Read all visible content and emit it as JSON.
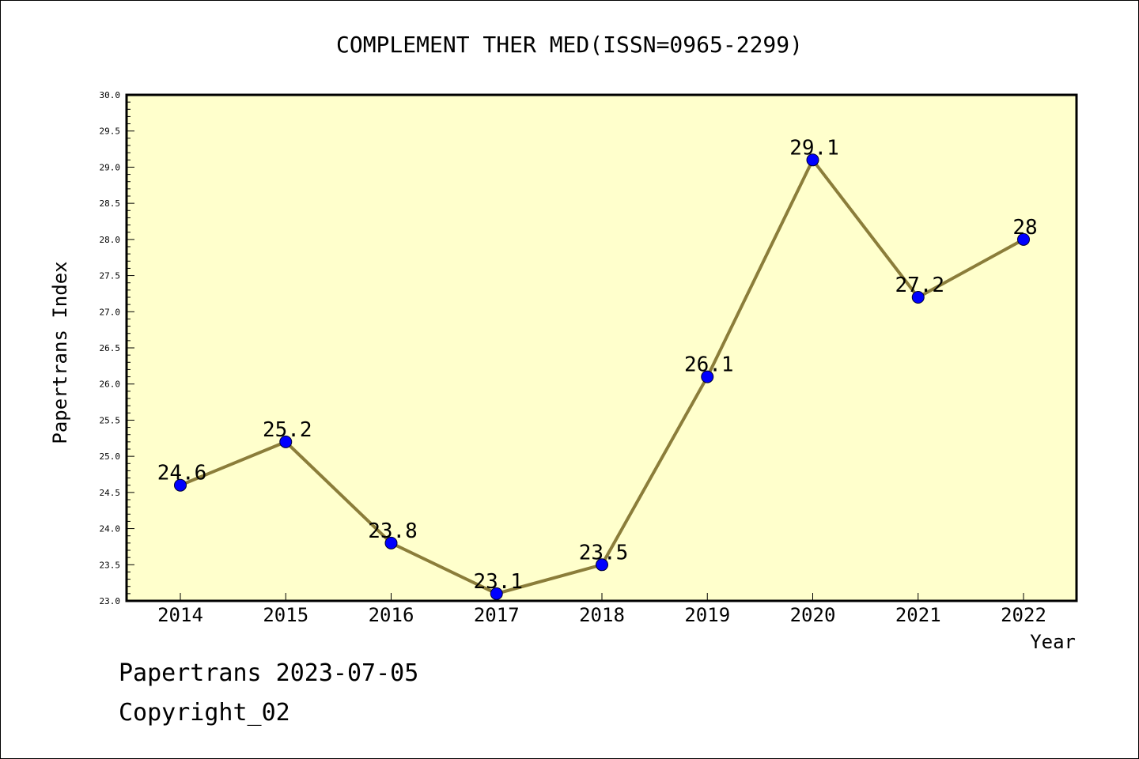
{
  "chart_data": {
    "type": "line",
    "title": "COMPLEMENT THER MED(ISSN=0965-2299)",
    "xlabel": "Year",
    "ylabel": "Papertrans Index",
    "categories": [
      "2014",
      "2015",
      "2016",
      "2017",
      "2018",
      "2019",
      "2020",
      "2021",
      "2022"
    ],
    "series": [
      {
        "values": [
          24.6,
          25.2,
          23.8,
          23.1,
          23.5,
          26.1,
          29.1,
          27.2,
          28
        ],
        "labels": [
          "24.6",
          "25.2",
          "23.8",
          "23.1",
          "23.5",
          "26.1",
          "29.1",
          "27.2",
          "28"
        ]
      }
    ],
    "ylim": [
      23.0,
      30.0
    ],
    "ytick_step": 0.5,
    "yticks": [
      "23.0",
      "23.5",
      "24.0",
      "24.5",
      "25.0",
      "25.5",
      "26.0",
      "26.5",
      "27.0",
      "27.5",
      "28.0",
      "28.5",
      "29.0",
      "29.5",
      "30.0"
    ],
    "grid": false,
    "colors": {
      "plot_background": "#FFFFCC",
      "line": "#8B7D3A",
      "marker": "#0000FF",
      "axis": "#000000"
    }
  },
  "footer": {
    "line1": "Papertrans 2023-07-05",
    "line2": "Copyright_02"
  }
}
